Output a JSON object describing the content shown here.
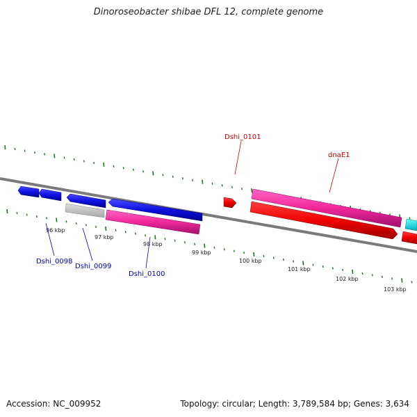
{
  "title": "Dinoroseobacter shibae DFL 12, complete genome",
  "footer": {
    "accession": "Accession: NC_009952",
    "summary": "Topology: circular; Length: 3,789,584 bp; Genes: 3,634"
  },
  "colors": {
    "backbone": "#7a7a7a",
    "tick": "#1a7a1a",
    "label_blue": "#0000cc",
    "label_red": "#cc0000"
  },
  "ticks_kbp": [
    "96 kbp",
    "97 kbp",
    "98 kbp",
    "99 kbp",
    "100 kbp",
    "101 kbp",
    "102 kbp",
    "103 kbp"
  ],
  "gene_labels": [
    {
      "id": "Dshi_0098",
      "color": "blue"
    },
    {
      "id": "Dshi_0099",
      "color": "blue"
    },
    {
      "id": "Dshi_0100",
      "color": "blue"
    },
    {
      "id": "Dshi_0101",
      "color": "red"
    },
    {
      "id": "dnaE1",
      "color": "red"
    }
  ]
}
